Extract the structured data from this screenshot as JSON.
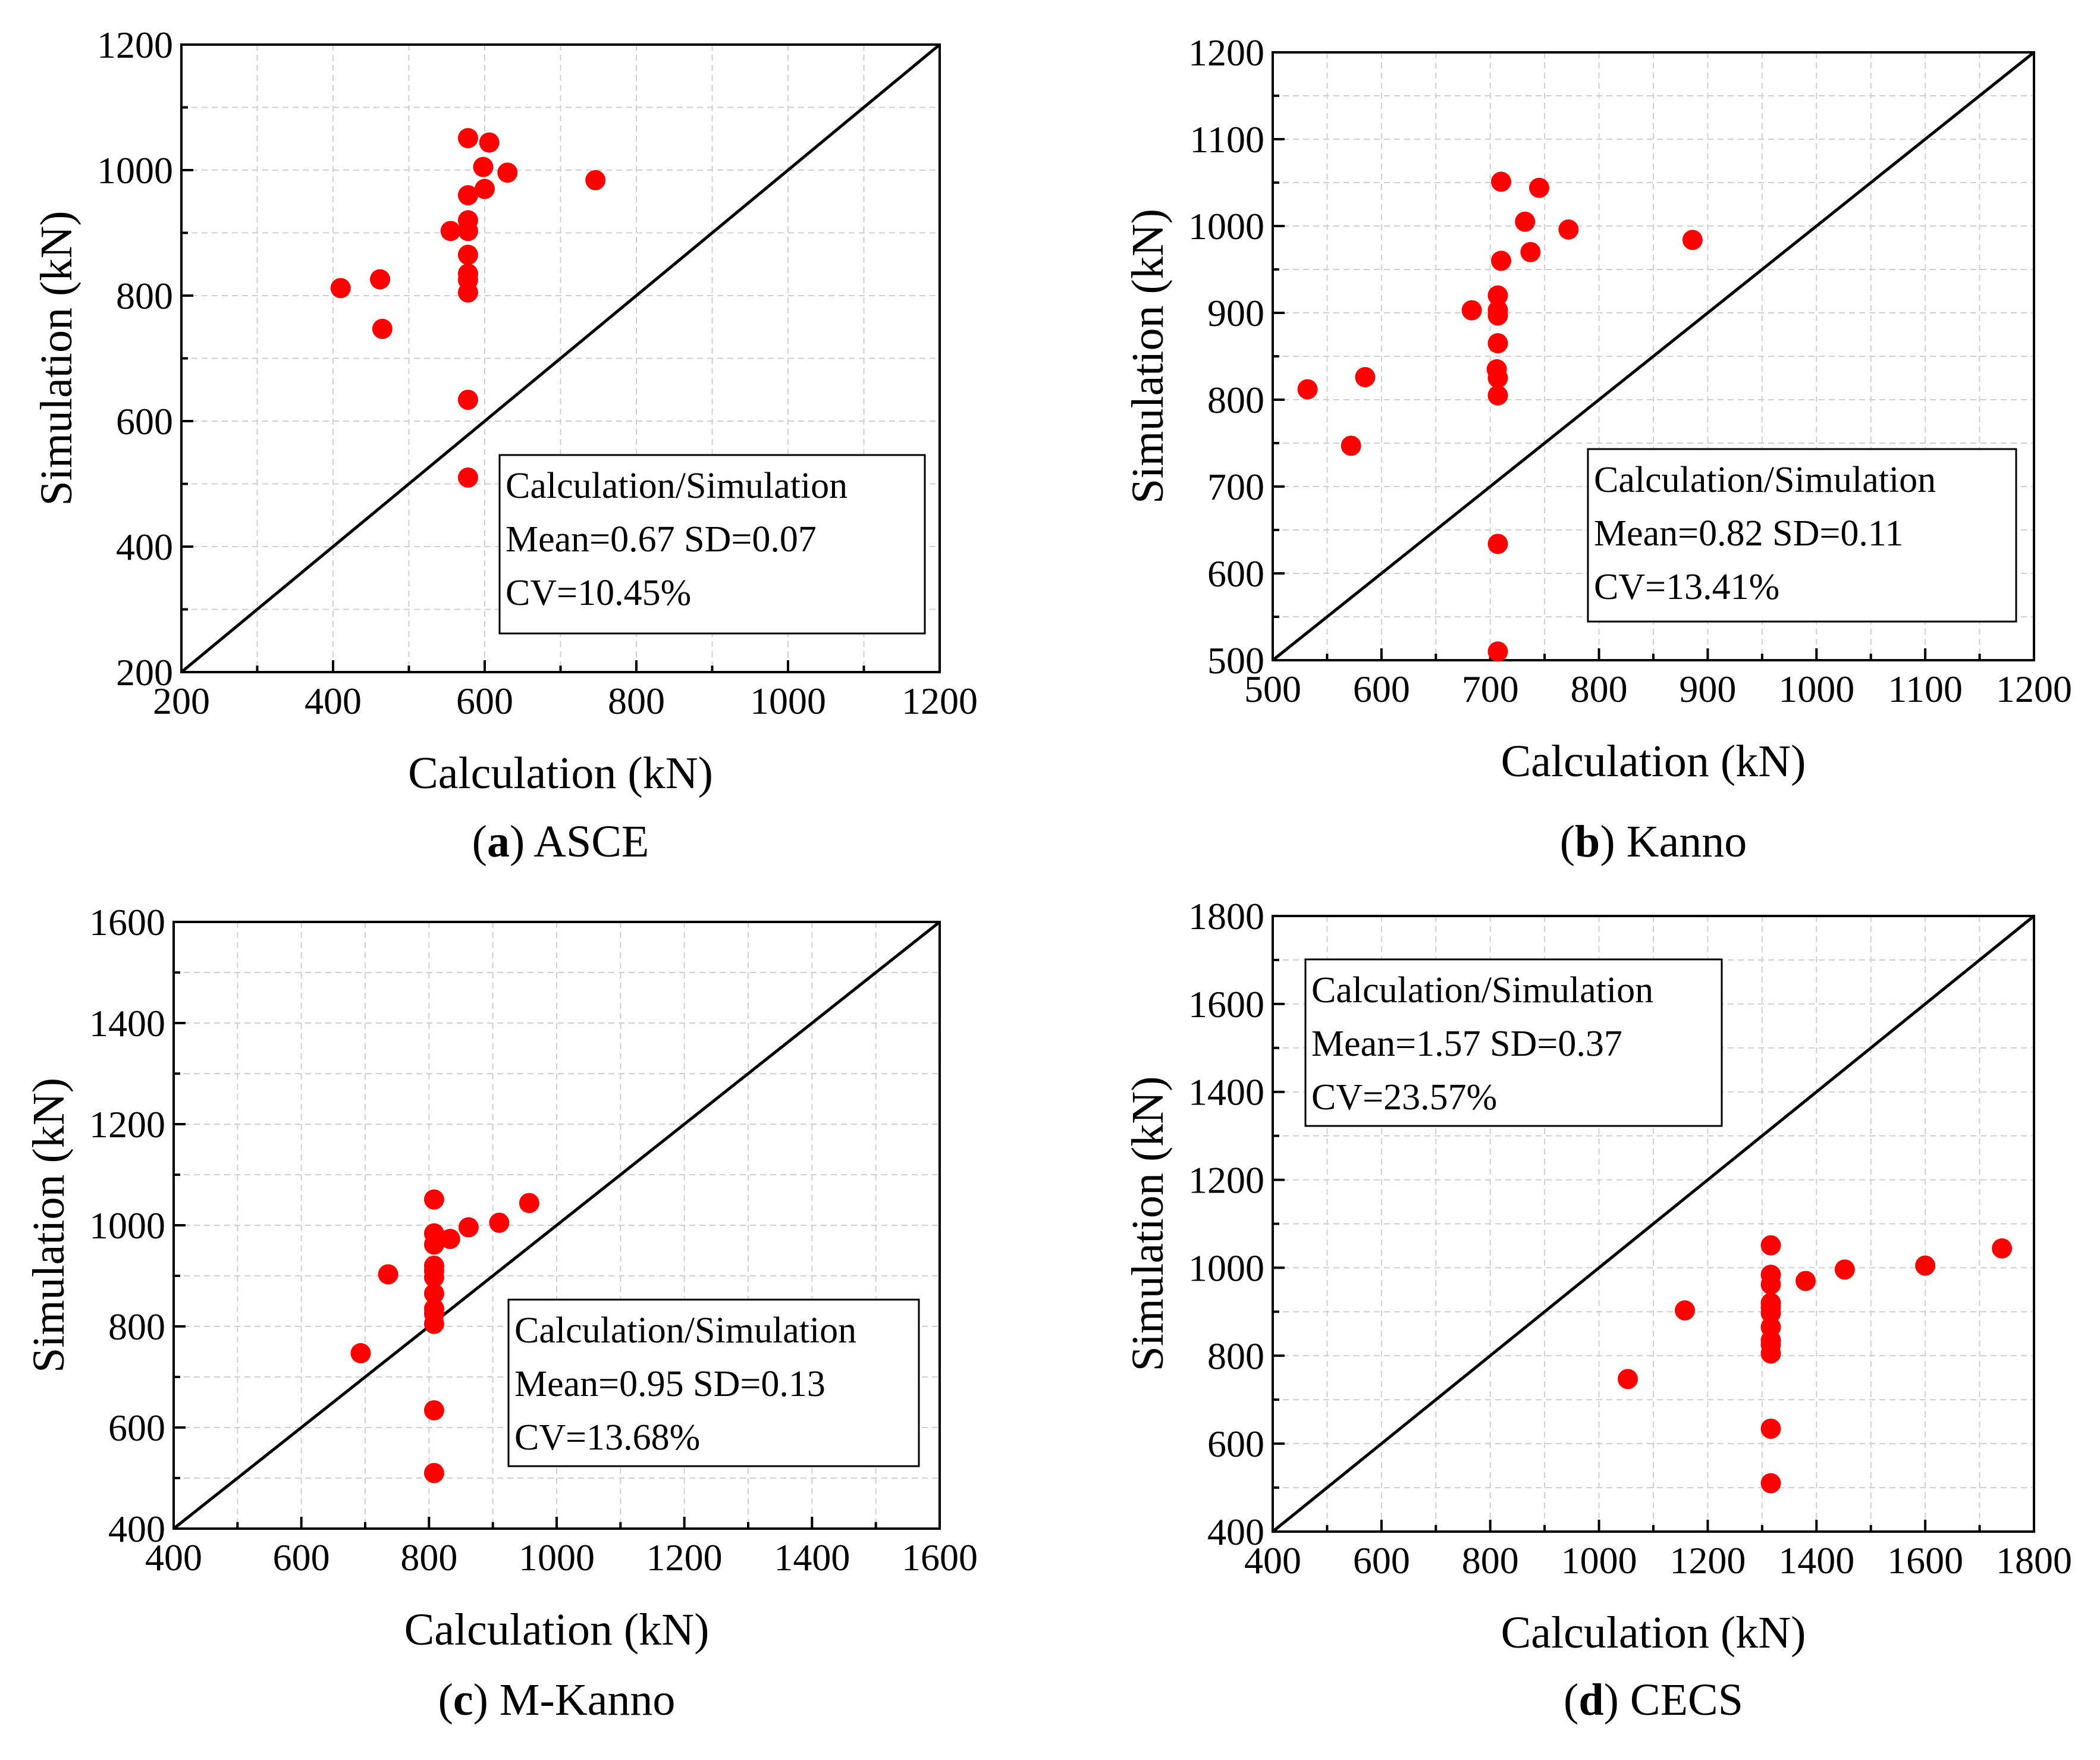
{
  "colors": {
    "points": "#ff0000",
    "frame": "#000000",
    "grid": "#cfcfcf"
  },
  "chart_data": [
    {
      "type": "scatter",
      "panel_letter": "a",
      "caption": "ASCE",
      "xlabel": "Calculation (kN)",
      "ylabel": "Simulation (kN)",
      "xlim": [
        200,
        1200
      ],
      "ylim": [
        200,
        1200
      ],
      "xticks": [
        200,
        400,
        600,
        800,
        1000,
        1200
      ],
      "yticks": [
        200,
        400,
        600,
        800,
        1000,
        1200
      ],
      "grid": true,
      "diagonal": "y = x",
      "stats_position": "bottom-right",
      "stats": [
        "Calculation/Simulation",
        "Mean=0.67 SD=0.07",
        "CV=10.45%"
      ],
      "points": [
        [
          578,
          1051
        ],
        [
          606,
          1044
        ],
        [
          598,
          1005
        ],
        [
          630,
          996
        ],
        [
          746,
          984
        ],
        [
          600,
          970
        ],
        [
          578,
          960
        ],
        [
          578,
          920
        ],
        [
          555,
          903
        ],
        [
          578,
          903
        ],
        [
          578,
          865
        ],
        [
          578,
          835
        ],
        [
          578,
          825
        ],
        [
          578,
          805
        ],
        [
          410,
          812
        ],
        [
          462,
          826
        ],
        [
          465,
          747
        ],
        [
          578,
          634
        ],
        [
          578,
          510
        ]
      ]
    },
    {
      "type": "scatter",
      "panel_letter": "b",
      "caption": "Kanno",
      "xlabel": "Calculation (kN)",
      "ylabel": "Simulation (kN)",
      "xlim": [
        500,
        1200
      ],
      "ylim": [
        500,
        1200
      ],
      "xticks": [
        500,
        600,
        700,
        800,
        900,
        1000,
        1100,
        1200
      ],
      "yticks": [
        500,
        600,
        700,
        800,
        900,
        1000,
        1100,
        1200
      ],
      "grid": true,
      "diagonal": "y = x",
      "stats_position": "bottom-right",
      "stats": [
        "Calculation/Simulation",
        "Mean=0.82 SD=0.11",
        "CV=13.41%"
      ],
      "points": [
        [
          710,
          1051
        ],
        [
          745,
          1044
        ],
        [
          732,
          1005
        ],
        [
          772,
          996
        ],
        [
          886,
          984
        ],
        [
          737,
          970
        ],
        [
          710,
          960
        ],
        [
          707,
          920
        ],
        [
          683,
          903
        ],
        [
          707,
          903
        ],
        [
          707,
          897
        ],
        [
          707,
          865
        ],
        [
          706,
          835
        ],
        [
          707,
          825
        ],
        [
          707,
          805
        ],
        [
          532,
          812
        ],
        [
          585,
          826
        ],
        [
          572,
          747
        ],
        [
          707,
          634
        ],
        [
          707,
          510
        ]
      ]
    },
    {
      "type": "scatter",
      "panel_letter": "c",
      "caption": "M-Kanno",
      "xlabel": "Calculation (kN)",
      "ylabel": "Simulation (kN)",
      "xlim": [
        400,
        1600
      ],
      "ylim": [
        400,
        1600
      ],
      "xticks": [
        400,
        600,
        800,
        1000,
        1200,
        1400,
        1600
      ],
      "yticks": [
        400,
        600,
        800,
        1000,
        1200,
        1400,
        1600
      ],
      "grid": true,
      "diagonal": "y = x",
      "stats_position": "bottom-right",
      "stats": [
        "Calculation/Simulation",
        "Mean=0.95 SD=0.13",
        "CV=13.68%"
      ],
      "points": [
        [
          808,
          1051
        ],
        [
          957,
          1044
        ],
        [
          910,
          1005
        ],
        [
          862,
          996
        ],
        [
          808,
          984
        ],
        [
          833,
          973
        ],
        [
          808,
          962
        ],
        [
          808,
          920
        ],
        [
          808,
          910
        ],
        [
          736,
          903
        ],
        [
          808,
          897
        ],
        [
          808,
          865
        ],
        [
          808,
          835
        ],
        [
          808,
          825
        ],
        [
          808,
          805
        ],
        [
          693,
          747
        ],
        [
          808,
          634
        ],
        [
          808,
          510
        ]
      ]
    },
    {
      "type": "scatter",
      "panel_letter": "d",
      "caption": "CECS",
      "xlabel": "Calculation (kN)",
      "ylabel": "Simulation (kN)",
      "xlim": [
        400,
        1800
      ],
      "ylim": [
        400,
        1800
      ],
      "xticks": [
        400,
        600,
        800,
        1000,
        1200,
        1400,
        1600,
        1800
      ],
      "yticks": [
        400,
        600,
        800,
        1000,
        1200,
        1400,
        1600,
        1800
      ],
      "grid": true,
      "diagonal": "y = x",
      "stats_position": "top-left",
      "stats": [
        "Calculation/Simulation",
        "Mean=1.57 SD=0.37",
        "CV=23.57%"
      ],
      "points": [
        [
          1316,
          1051
        ],
        [
          1741,
          1044
        ],
        [
          1600,
          1005
        ],
        [
          1452,
          996
        ],
        [
          1316,
          984
        ],
        [
          1380,
          970
        ],
        [
          1316,
          962
        ],
        [
          1316,
          920
        ],
        [
          1316,
          910
        ],
        [
          1158,
          903
        ],
        [
          1316,
          897
        ],
        [
          1316,
          865
        ],
        [
          1316,
          835
        ],
        [
          1316,
          825
        ],
        [
          1316,
          805
        ],
        [
          1053,
          747
        ],
        [
          1316,
          634
        ],
        [
          1316,
          510
        ]
      ]
    }
  ]
}
